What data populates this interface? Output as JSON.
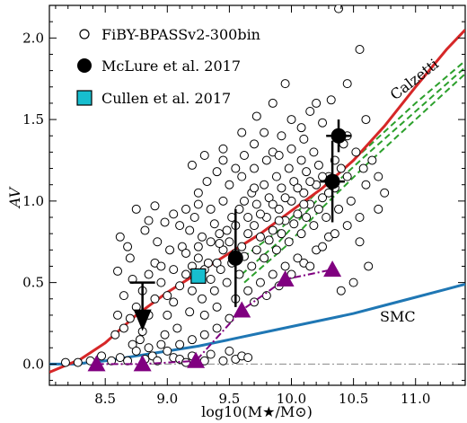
{
  "chart_data": {
    "type": "scatter",
    "xlabel": "log10(M★/M⊙)",
    "ylabel": "AV",
    "xlim": [
      8.05,
      11.4
    ],
    "ylim": [
      -0.13,
      2.2
    ],
    "xticks": [
      "8.5",
      "9.0",
      "9.5",
      "10.0",
      "10.5",
      "11.0"
    ],
    "yticks": [
      "0.0",
      "0.5",
      "1.0",
      "1.5",
      "2.0"
    ],
    "legend": {
      "placement": "top-left",
      "entries": [
        "FiBY-BPASSv2-300bin",
        "McLure et al. 2017",
        "Cullen et al. 2017"
      ]
    },
    "annotations": [
      "Calzetti",
      "SMC"
    ],
    "colors": {
      "calzetti": "#d62728",
      "smc": "#1f77b4",
      "dashed": "#2ca02c",
      "triangles": "#800080",
      "cullen": "#17becf",
      "zero_line": "#888888"
    },
    "fiby_points": [
      [
        8.18,
        0.01
      ],
      [
        8.28,
        0.01
      ],
      [
        8.38,
        0.02
      ],
      [
        8.47,
        0.05
      ],
      [
        8.55,
        0.02
      ],
      [
        8.62,
        0.04
      ],
      [
        8.68,
        0.02
      ],
      [
        8.72,
        0.12
      ],
      [
        8.75,
        0.08
      ],
      [
        8.78,
        0.15
      ],
      [
        8.82,
        0.03
      ],
      [
        8.85,
        0.1
      ],
      [
        8.88,
        0.05
      ],
      [
        8.92,
        0.02
      ],
      [
        8.95,
        0.12
      ],
      [
        9.0,
        0.08
      ],
      [
        9.05,
        0.04
      ],
      [
        9.1,
        0.03
      ],
      [
        9.15,
        0.01
      ],
      [
        9.2,
        0.05
      ],
      [
        9.3,
        0.02
      ],
      [
        9.35,
        0.06
      ],
      [
        9.45,
        0.02
      ],
      [
        9.5,
        0.08
      ],
      [
        9.55,
        0.03
      ],
      [
        9.6,
        0.05
      ],
      [
        9.65,
        0.04
      ],
      [
        8.58,
        0.18
      ],
      [
        8.65,
        0.22
      ],
      [
        8.7,
        0.28
      ],
      [
        8.75,
        0.35
      ],
      [
        8.8,
        0.45
      ],
      [
        8.85,
        0.55
      ],
      [
        8.9,
        0.62
      ],
      [
        8.95,
        0.5
      ],
      [
        9.0,
        0.42
      ],
      [
        9.05,
        0.38
      ],
      [
        9.1,
        0.48
      ],
      [
        9.15,
        0.55
      ],
      [
        9.2,
        0.6
      ],
      [
        9.25,
        0.65
      ],
      [
        9.3,
        0.58
      ],
      [
        9.35,
        0.52
      ],
      [
        9.4,
        0.62
      ],
      [
        9.45,
        0.7
      ],
      [
        9.5,
        0.75
      ],
      [
        9.55,
        0.68
      ],
      [
        9.6,
        0.72
      ],
      [
        9.65,
        0.8
      ],
      [
        9.7,
        0.85
      ],
      [
        9.75,
        0.78
      ],
      [
        9.8,
        0.9
      ],
      [
        9.85,
        0.82
      ],
      [
        9.9,
        0.95
      ],
      [
        9.95,
        0.88
      ],
      [
        10.0,
        1.0
      ],
      [
        10.05,
        0.92
      ],
      [
        10.1,
        1.05
      ],
      [
        10.15,
        0.98
      ],
      [
        10.2,
        1.1
      ],
      [
        10.25,
        1.02
      ],
      [
        10.3,
        1.15
      ],
      [
        10.35,
        1.08
      ],
      [
        10.4,
        1.2
      ],
      [
        8.7,
        0.65
      ],
      [
        8.62,
        0.78
      ],
      [
        8.85,
        0.88
      ],
      [
        8.75,
        0.95
      ],
      [
        9.05,
        0.92
      ],
      [
        9.12,
        0.72
      ],
      [
        9.18,
        0.82
      ],
      [
        9.28,
        0.78
      ],
      [
        9.38,
        0.86
      ],
      [
        9.42,
        0.74
      ],
      [
        9.48,
        0.82
      ],
      [
        9.52,
        0.9
      ],
      [
        9.58,
        0.95
      ],
      [
        9.62,
        1.0
      ],
      [
        9.68,
        1.05
      ],
      [
        9.72,
        0.98
      ],
      [
        9.78,
        1.1
      ],
      [
        9.82,
        1.02
      ],
      [
        9.88,
        1.15
      ],
      [
        9.92,
        1.08
      ],
      [
        9.98,
        1.2
      ],
      [
        10.02,
        1.12
      ],
      [
        10.08,
        1.25
      ],
      [
        10.12,
        1.18
      ],
      [
        10.18,
        1.3
      ],
      [
        10.22,
        1.22
      ],
      [
        9.55,
        1.2
      ],
      [
        9.62,
        1.28
      ],
      [
        9.7,
        1.35
      ],
      [
        9.78,
        1.42
      ],
      [
        9.85,
        1.3
      ],
      [
        9.92,
        1.4
      ],
      [
        10.0,
        1.5
      ],
      [
        10.08,
        1.45
      ],
      [
        10.15,
        1.55
      ],
      [
        10.25,
        1.48
      ],
      [
        10.32,
        1.62
      ],
      [
        10.45,
        1.72
      ],
      [
        9.25,
        1.05
      ],
      [
        9.32,
        1.12
      ],
      [
        9.4,
        1.18
      ],
      [
        9.45,
        1.0
      ],
      [
        9.35,
        0.95
      ],
      [
        9.22,
        0.9
      ],
      [
        9.1,
        0.85
      ],
      [
        9.02,
        0.7
      ],
      [
        8.95,
        0.6
      ],
      [
        8.9,
        0.4
      ],
      [
        8.85,
        0.3
      ],
      [
        8.8,
        0.2
      ],
      [
        8.98,
        0.18
      ],
      [
        9.08,
        0.22
      ],
      [
        9.18,
        0.32
      ],
      [
        9.28,
        0.4
      ],
      [
        9.38,
        0.45
      ],
      [
        9.48,
        0.5
      ],
      [
        9.58,
        0.55
      ],
      [
        9.68,
        0.6
      ],
      [
        9.78,
        0.65
      ],
      [
        9.88,
        0.7
      ],
      [
        9.98,
        0.75
      ],
      [
        10.08,
        0.8
      ],
      [
        10.18,
        0.85
      ],
      [
        10.28,
        0.9
      ],
      [
        10.38,
        0.95
      ],
      [
        10.48,
        1.0
      ],
      [
        10.55,
        0.9
      ],
      [
        10.6,
        1.1
      ],
      [
        10.65,
        1.25
      ],
      [
        10.52,
        1.3
      ],
      [
        10.42,
        1.35
      ],
      [
        10.3,
        0.78
      ],
      [
        10.2,
        0.7
      ],
      [
        10.1,
        0.62
      ],
      [
        10.0,
        0.55
      ],
      [
        9.9,
        0.48
      ],
      [
        9.8,
        0.42
      ],
      [
        9.7,
        0.38
      ],
      [
        9.6,
        0.32
      ],
      [
        9.5,
        0.28
      ],
      [
        9.4,
        0.22
      ],
      [
        9.3,
        0.18
      ],
      [
        9.2,
        0.15
      ],
      [
        9.1,
        0.12
      ],
      [
        9.0,
        0.3
      ],
      [
        9.2,
        0.45
      ],
      [
        9.3,
        0.3
      ],
      [
        9.4,
        0.35
      ],
      [
        9.55,
        0.4
      ],
      [
        9.65,
        0.45
      ],
      [
        9.75,
        0.5
      ],
      [
        9.85,
        0.55
      ],
      [
        9.95,
        0.6
      ],
      [
        10.05,
        0.65
      ],
      [
        10.15,
        0.6
      ],
      [
        10.25,
        0.72
      ],
      [
        10.35,
        0.8
      ],
      [
        10.45,
        0.85
      ],
      [
        10.55,
        0.75
      ],
      [
        10.62,
        0.6
      ],
      [
        10.5,
        0.5
      ],
      [
        10.4,
        0.45
      ],
      [
        10.7,
        0.95
      ],
      [
        10.75,
        1.05
      ],
      [
        9.95,
        1.72
      ],
      [
        10.55,
        1.93
      ],
      [
        10.38,
        2.18
      ],
      [
        8.98,
        0.87
      ],
      [
        8.9,
        0.97
      ],
      [
        8.6,
        0.57
      ],
      [
        8.68,
        0.72
      ],
      [
        9.2,
        1.22
      ],
      [
        9.3,
        1.28
      ],
      [
        9.45,
        1.32
      ],
      [
        9.6,
        1.42
      ],
      [
        9.72,
        1.52
      ],
      [
        9.85,
        1.6
      ],
      [
        10.2,
        1.6
      ],
      [
        9.15,
        0.68
      ],
      [
        9.25,
        0.72
      ],
      [
        9.33,
        0.62
      ],
      [
        9.43,
        0.58
      ],
      [
        9.52,
        0.62
      ],
      [
        9.62,
        0.66
      ],
      [
        9.72,
        0.7
      ],
      [
        9.82,
        0.76
      ],
      [
        9.92,
        0.8
      ],
      [
        10.02,
        0.86
      ],
      [
        10.12,
        0.9
      ],
      [
        10.22,
        0.95
      ],
      [
        9.05,
        0.58
      ],
      [
        8.92,
        0.75
      ],
      [
        8.82,
        0.82
      ],
      [
        8.72,
        0.52
      ],
      [
        8.65,
        0.42
      ],
      [
        8.6,
        0.3
      ],
      [
        9.5,
        1.1
      ],
      [
        9.6,
        1.15
      ],
      [
        9.7,
        1.2
      ],
      [
        9.8,
        1.25
      ],
      [
        9.9,
        1.28
      ],
      [
        10.0,
        1.32
      ],
      [
        10.1,
        1.38
      ],
      [
        10.35,
        1.25
      ],
      [
        10.45,
        1.15
      ],
      [
        10.58,
        1.2
      ],
      [
        9.35,
        0.75
      ],
      [
        9.42,
        0.8
      ],
      [
        9.55,
        0.85
      ],
      [
        9.65,
        0.9
      ],
      [
        9.75,
        0.92
      ],
      [
        9.85,
        0.98
      ],
      [
        9.95,
        1.02
      ],
      [
        10.05,
        1.08
      ],
      [
        10.15,
        1.12
      ],
      [
        10.25,
        1.15
      ],
      [
        9.15,
        0.95
      ],
      [
        9.25,
        0.98
      ],
      [
        9.45,
        1.25
      ],
      [
        9.7,
        1.08
      ],
      [
        9.9,
        0.88
      ],
      [
        10.1,
        0.98
      ],
      [
        10.3,
        1.05
      ],
      [
        10.45,
        1.4
      ],
      [
        10.6,
        1.5
      ],
      [
        10.7,
        1.15
      ]
    ],
    "mclure": [
      {
        "x": 9.55,
        "y": 0.65,
        "yerr": 0.3,
        "xerr": 0
      },
      {
        "x": 10.33,
        "y": 1.12,
        "yerr": 0.25,
        "xerr": 0.1
      },
      {
        "x": 10.38,
        "y": 1.4,
        "yerr": 0.1,
        "xerr": 0.1
      }
    ],
    "mclure_upper_limit": {
      "x": 8.8,
      "y": 0.5,
      "arrow_to": 0.28
    },
    "cullen": {
      "x": 9.25,
      "y": 0.54
    },
    "triangles": [
      [
        8.43,
        0.0
      ],
      [
        8.8,
        0.0
      ],
      [
        9.23,
        0.02
      ],
      [
        9.6,
        0.33
      ],
      [
        9.95,
        0.52
      ],
      [
        10.33,
        0.58
      ]
    ],
    "triangle_line_start": [
      8.43,
      0.0
    ],
    "calzetti_curve": [
      [
        8.05,
        -0.05
      ],
      [
        8.3,
        0.03
      ],
      [
        8.5,
        0.13
      ],
      [
        8.75,
        0.3
      ],
      [
        9.0,
        0.44
      ],
      [
        9.25,
        0.56
      ],
      [
        9.5,
        0.68
      ],
      [
        9.75,
        0.8
      ],
      [
        10.0,
        0.94
      ],
      [
        10.25,
        1.08
      ],
      [
        10.5,
        1.25
      ],
      [
        10.75,
        1.46
      ],
      [
        11.0,
        1.7
      ],
      [
        11.25,
        1.93
      ],
      [
        11.4,
        2.05
      ]
    ],
    "smc_curve": [
      [
        8.05,
        0.0
      ],
      [
        8.25,
        0.0
      ],
      [
        8.5,
        0.02
      ],
      [
        8.75,
        0.05
      ],
      [
        9.0,
        0.08
      ],
      [
        9.25,
        0.11
      ],
      [
        9.5,
        0.15
      ],
      [
        9.75,
        0.19
      ],
      [
        10.0,
        0.23
      ],
      [
        10.25,
        0.27
      ],
      [
        10.5,
        0.31
      ],
      [
        10.75,
        0.36
      ],
      [
        11.0,
        0.41
      ],
      [
        11.25,
        0.46
      ],
      [
        11.4,
        0.49
      ]
    ],
    "dashed_curves": [
      [
        [
          9.6,
          0.55
        ],
        [
          9.9,
          0.75
        ],
        [
          10.2,
          1.0
        ],
        [
          10.6,
          1.28
        ],
        [
          11.0,
          1.55
        ],
        [
          11.4,
          1.82
        ]
      ],
      [
        [
          9.55,
          0.62
        ],
        [
          9.9,
          0.82
        ],
        [
          10.2,
          1.05
        ],
        [
          10.6,
          1.32
        ],
        [
          11.0,
          1.6
        ],
        [
          11.4,
          1.86
        ]
      ],
      [
        [
          9.62,
          0.5
        ],
        [
          9.95,
          0.72
        ],
        [
          10.25,
          0.96
        ],
        [
          10.6,
          1.22
        ],
        [
          11.0,
          1.5
        ],
        [
          11.4,
          1.78
        ]
      ]
    ],
    "zero_line_y": 0.0
  }
}
